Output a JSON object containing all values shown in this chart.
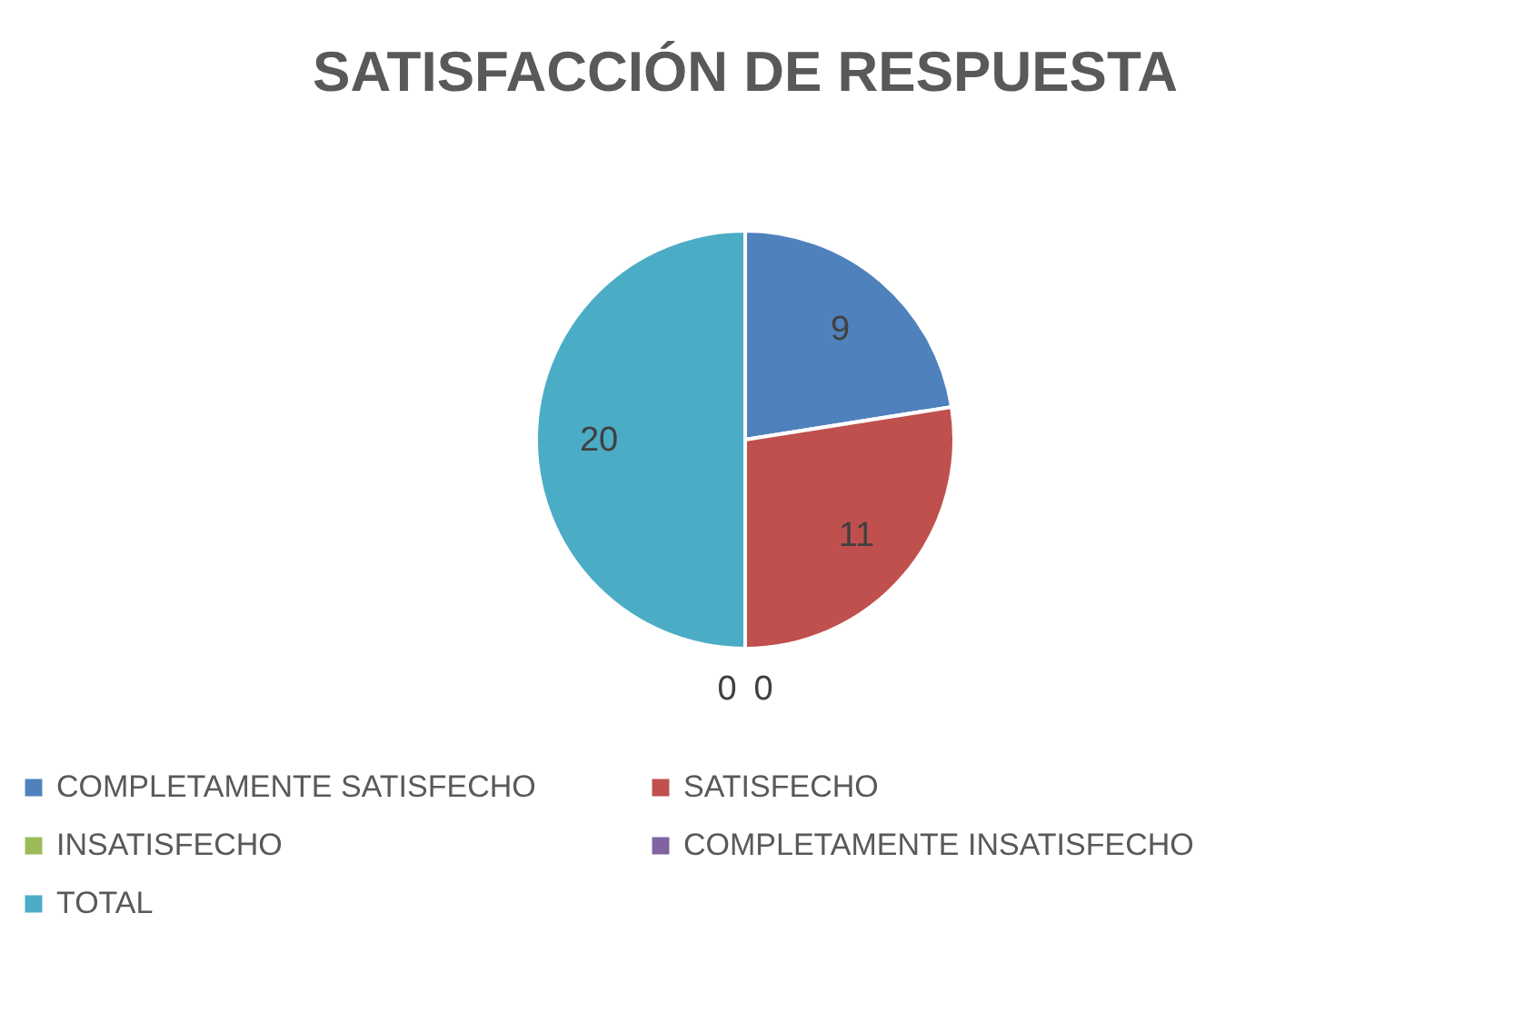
{
  "chart_data": {
    "type": "pie",
    "title": "SATISFACCIÓN DE RESPUESTA",
    "categories": [
      "COMPLETAMENTE SATISFECHO",
      "SATISFECHO",
      "INSATISFECHO",
      "COMPLETAMENTE INSATISFECHO",
      "TOTAL"
    ],
    "values": [
      9,
      11,
      0,
      0,
      20
    ],
    "colors": [
      "#4f81bd",
      "#c0504d",
      "#9bbb59",
      "#8064a2",
      "#4bacc6"
    ],
    "value_labels": [
      "9",
      "11",
      "0",
      "0",
      "20"
    ],
    "legend": "bottom"
  }
}
